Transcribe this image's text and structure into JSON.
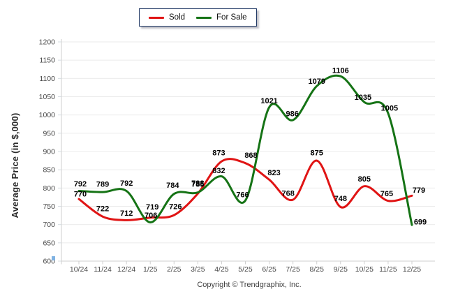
{
  "legend": {
    "items": [
      {
        "label": "Sold",
        "color": "#e01414"
      },
      {
        "label": "For Sale",
        "color": "#157315"
      }
    ]
  },
  "footer": {
    "copyright": "Copyright © Trendgraphix, Inc."
  },
  "chart_data": {
    "type": "line",
    "title": "",
    "xlabel": "",
    "ylabel": "Average Price (in $,000)",
    "ylim": [
      600,
      1200
    ],
    "ytick_step": 50,
    "grid": true,
    "smooth": true,
    "legend_position": "top-center",
    "categories": [
      "10/24",
      "11/24",
      "12/24",
      "1/25",
      "2/25",
      "3/25",
      "4/25",
      "5/25",
      "6/25",
      "7/25",
      "8/25",
      "9/25",
      "10/25",
      "11/25",
      "12/25"
    ],
    "series": [
      {
        "name": "Sold",
        "color": "#e01414",
        "values": [
          770,
          722,
          712,
          719,
          726,
          785,
          873,
          868,
          823,
          768,
          875,
          748,
          805,
          765,
          779
        ],
        "label_dx": [
          2,
          0,
          0,
          3,
          2,
          0,
          -4,
          8,
          7,
          -7,
          0,
          0,
          0,
          -2,
          10
        ],
        "label_dy": [
          -7,
          -11,
          -10,
          -15,
          -12,
          -13,
          -12,
          -11,
          -10,
          -9,
          -11,
          -12,
          -10,
          -10,
          -8
        ]
      },
      {
        "name": "For Sale",
        "color": "#157315",
        "values": [
          792,
          789,
          792,
          706,
          784,
          788,
          832,
          766,
          1021,
          986,
          1079,
          1106,
          1035,
          1005,
          699
        ],
        "label_dx": [
          2,
          0,
          0,
          1,
          -2,
          0,
          -4,
          -4,
          0,
          -1,
          0,
          0,
          -2,
          2,
          12
        ],
        "label_dy": [
          -10,
          -11,
          -11,
          -10,
          -12,
          -13,
          -8,
          -8,
          -9,
          -9,
          -7,
          -8,
          -7,
          -7,
          -4
        ]
      }
    ]
  },
  "style": {
    "grid_color": "#ebebeb",
    "axis_color": "#cfcfcf",
    "tick_color": "#d6dce2",
    "corner_tick_color": "#7fb2e2",
    "tick_label_color": "#4a4a4a",
    "data_label_color": "#000000"
  }
}
